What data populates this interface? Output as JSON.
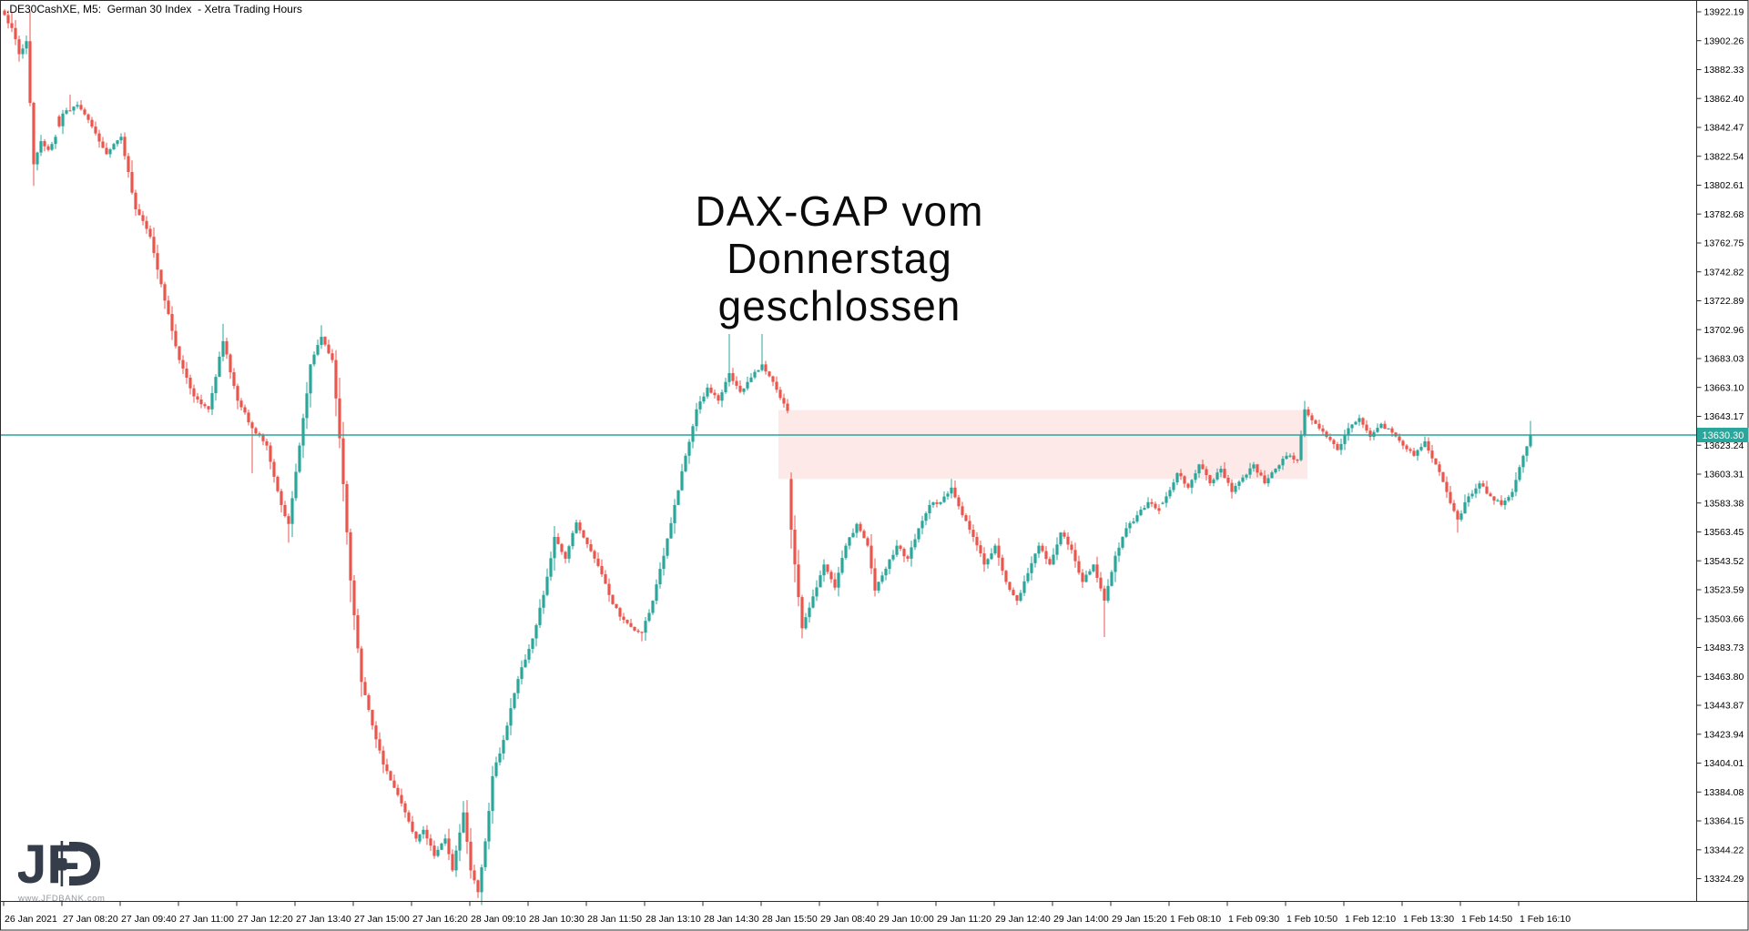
{
  "window": {
    "title": ".DE30CashXE, M5:  German 30 Index  - Xetra Trading Hours"
  },
  "annotation": {
    "lines": [
      "DAX-GAP vom",
      "Donnerstag",
      "geschlossen"
    ]
  },
  "logo": {
    "brand": "JFD",
    "url_label": "www.JFDBANK.com"
  },
  "colors": {
    "candle_up": "#2aa69b",
    "candle_down": "#e8564e",
    "price_line": "#2aa69b",
    "price_tag_bg": "#2aa69b",
    "price_tag_text": "#ffffff",
    "gap_zone_fill": "#fce9e8",
    "axis_line": "#2b2b2b",
    "axis_text": "#000000",
    "logo_ink": "#343d49"
  },
  "chart_data": {
    "type": "candlestick",
    "symbol": ".DE30CashXE",
    "timeframe": "M5",
    "instrument": "German 30 Index",
    "session_note": "Xetra Trading Hours",
    "current_price": "13630.30",
    "price_line_value": 13630.3,
    "price_axis": {
      "labels": [
        "13922.19",
        "13902.26",
        "13882.33",
        "13862.40",
        "13842.47",
        "13822.54",
        "13802.61",
        "13782.68",
        "13762.75",
        "13742.82",
        "13722.89",
        "13702.96",
        "13683.03",
        "13663.10",
        "13643.17",
        "13623.24",
        "13603.31",
        "13583.38",
        "13563.45",
        "13543.52",
        "13523.59",
        "13503.66",
        "13483.73",
        "13463.80",
        "13443.87",
        "13423.94",
        "13404.01",
        "13384.08",
        "13364.15",
        "13344.22",
        "13324.29"
      ],
      "top_value": 13922.19,
      "step": 19.93
    },
    "time_axis": {
      "labels": [
        "26 Jan 2021",
        "27 Jan 08:20",
        "27 Jan 09:40",
        "27 Jan 11:00",
        "27 Jan 12:20",
        "27 Jan 13:40",
        "27 Jan 15:00",
        "27 Jan 16:20",
        "28 Jan 09:10",
        "28 Jan 10:30",
        "28 Jan 11:50",
        "28 Jan 13:10",
        "28 Jan 14:30",
        "28 Jan 15:50",
        "29 Jan 08:40",
        "29 Jan 10:00",
        "29 Jan 11:20",
        "29 Jan 12:40",
        "29 Jan 14:00",
        "29 Jan 15:20",
        "1 Feb 08:10",
        "1 Feb 09:30",
        "1 Feb 10:50",
        "1 Feb 12:10",
        "1 Feb 13:30",
        "1 Feb 14:50",
        "1 Feb 16:10"
      ],
      "bars_per_label": 16
    },
    "gap_zone": {
      "label": "DAX gap from Thursday, closed",
      "price_top": 13647.5,
      "price_bottom": 13600.0,
      "bar_start": 213,
      "bar_end": 357
    },
    "bars_total": 420,
    "day_open_overrides": {
      "15": 13850,
      "114": 13350,
      "216": 13600,
      "318": 13583
    },
    "close_path_anchors": [
      [
        0,
        13920
      ],
      [
        2,
        13911
      ],
      [
        4,
        13893
      ],
      [
        6,
        13902
      ],
      [
        8,
        13817
      ],
      [
        10,
        13833
      ],
      [
        12,
        13827
      ],
      [
        14,
        13836
      ],
      [
        16,
        13852
      ],
      [
        20,
        13858
      ],
      [
        24,
        13843
      ],
      [
        28,
        13824
      ],
      [
        32,
        13836
      ],
      [
        36,
        13786
      ],
      [
        40,
        13767
      ],
      [
        44,
        13723
      ],
      [
        48,
        13682
      ],
      [
        52,
        13657
      ],
      [
        56,
        13648
      ],
      [
        60,
        13695
      ],
      [
        64,
        13654
      ],
      [
        68,
        13635
      ],
      [
        72,
        13623
      ],
      [
        76,
        13582
      ],
      [
        78,
        13569
      ],
      [
        81,
        13623
      ],
      [
        84,
        13679
      ],
      [
        87,
        13698
      ],
      [
        90,
        13682
      ],
      [
        92,
        13628
      ],
      [
        95,
        13530
      ],
      [
        98,
        13460
      ],
      [
        101,
        13430
      ],
      [
        104,
        13403
      ],
      [
        106,
        13392
      ],
      [
        108,
        13382
      ],
      [
        110,
        13370
      ],
      [
        113,
        13352
      ],
      [
        115,
        13358
      ],
      [
        118,
        13340
      ],
      [
        121,
        13352
      ],
      [
        123,
        13330
      ],
      [
        126,
        13370
      ],
      [
        128,
        13330
      ],
      [
        130,
        13315
      ],
      [
        132,
        13350
      ],
      [
        134,
        13395
      ],
      [
        137,
        13420
      ],
      [
        141,
        13462
      ],
      [
        145,
        13490
      ],
      [
        148,
        13520
      ],
      [
        151,
        13560
      ],
      [
        154,
        13545
      ],
      [
        157,
        13570
      ],
      [
        160,
        13555
      ],
      [
        163,
        13540
      ],
      [
        166,
        13520
      ],
      [
        169,
        13505
      ],
      [
        172,
        13498
      ],
      [
        175,
        13494
      ],
      [
        178,
        13516
      ],
      [
        181,
        13547
      ],
      [
        184,
        13582
      ],
      [
        187,
        13616
      ],
      [
        190,
        13648
      ],
      [
        193,
        13663
      ],
      [
        196,
        13654
      ],
      [
        199,
        13673
      ],
      [
        202,
        13660
      ],
      [
        205,
        13670
      ],
      [
        208,
        13679
      ],
      [
        211,
        13667
      ],
      [
        215,
        13647
      ],
      [
        216,
        13565
      ],
      [
        217,
        13541
      ],
      [
        219,
        13497
      ],
      [
        222,
        13519
      ],
      [
        225,
        13541
      ],
      [
        228,
        13525
      ],
      [
        231,
        13554
      ],
      [
        234,
        13569
      ],
      [
        237,
        13554
      ],
      [
        239,
        13523
      ],
      [
        242,
        13538
      ],
      [
        245,
        13554
      ],
      [
        248,
        13545
      ],
      [
        251,
        13566
      ],
      [
        254,
        13582
      ],
      [
        257,
        13584
      ],
      [
        260,
        13594
      ],
      [
        263,
        13575
      ],
      [
        266,
        13560
      ],
      [
        269,
        13541
      ],
      [
        272,
        13554
      ],
      [
        275,
        13529
      ],
      [
        278,
        13516
      ],
      [
        281,
        13535
      ],
      [
        284,
        13554
      ],
      [
        287,
        13541
      ],
      [
        290,
        13563
      ],
      [
        293,
        13551
      ],
      [
        296,
        13529
      ],
      [
        299,
        13541
      ],
      [
        302,
        13516
      ],
      [
        305,
        13547
      ],
      [
        308,
        13566
      ],
      [
        311,
        13575
      ],
      [
        314,
        13584
      ],
      [
        317,
        13578
      ],
      [
        319,
        13588
      ],
      [
        322,
        13604
      ],
      [
        325,
        13594
      ],
      [
        328,
        13610
      ],
      [
        331,
        13597
      ],
      [
        334,
        13607
      ],
      [
        337,
        13591
      ],
      [
        340,
        13601
      ],
      [
        343,
        13610
      ],
      [
        346,
        13597
      ],
      [
        349,
        13607
      ],
      [
        352,
        13616
      ],
      [
        355,
        13613
      ],
      [
        357,
        13648
      ],
      [
        360,
        13638
      ],
      [
        363,
        13629
      ],
      [
        366,
        13620
      ],
      [
        369,
        13635
      ],
      [
        372,
        13642
      ],
      [
        375,
        13629
      ],
      [
        378,
        13638
      ],
      [
        381,
        13632
      ],
      [
        384,
        13623
      ],
      [
        387,
        13616
      ],
      [
        390,
        13626
      ],
      [
        393,
        13610
      ],
      [
        396,
        13591
      ],
      [
        399,
        13572
      ],
      [
        402,
        13588
      ],
      [
        405,
        13597
      ],
      [
        408,
        13588
      ],
      [
        411,
        13582
      ],
      [
        414,
        13591
      ],
      [
        417,
        13616
      ],
      [
        419,
        13630.3
      ]
    ],
    "wick_overrides": [
      {
        "bar": 0,
        "high": 13924
      },
      {
        "bar": 2,
        "high": 13922
      },
      {
        "bar": 8,
        "low": 13812
      },
      {
        "bar": 18,
        "high": 13865
      },
      {
        "bar": 60,
        "high": 13707
      },
      {
        "bar": 68,
        "low": 13604
      },
      {
        "bar": 78,
        "low": 13556
      },
      {
        "bar": 87,
        "high": 13706
      },
      {
        "bar": 95,
        "low": 13515
      },
      {
        "bar": 130,
        "low": 13311
      },
      {
        "bar": 175,
        "low": 13488
      },
      {
        "bar": 199,
        "high": 13700
      },
      {
        "bar": 208,
        "high": 13700
      },
      {
        "bar": 216,
        "low": 13552
      },
      {
        "bar": 219,
        "low": 13490
      },
      {
        "bar": 260,
        "high": 13600
      },
      {
        "bar": 302,
        "low": 13491
      },
      {
        "bar": 357,
        "high": 13653
      },
      {
        "bar": 399,
        "low": 13563
      },
      {
        "bar": 419,
        "high": 13640
      }
    ]
  }
}
